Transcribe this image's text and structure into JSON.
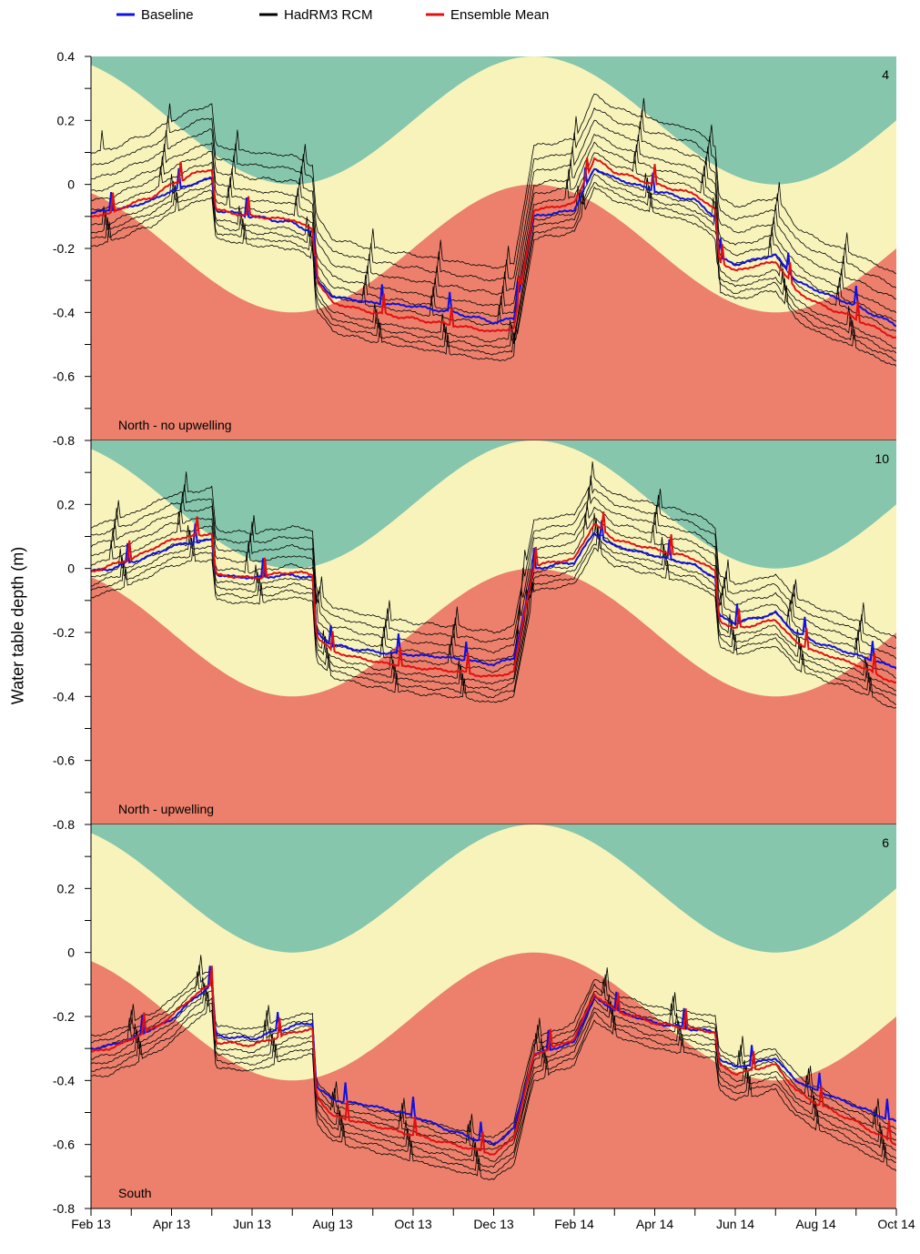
{
  "chart_data": {
    "type": "line",
    "ylabel": "Water table depth (m)",
    "legend": {
      "placement": "top",
      "entries": [
        {
          "name": "Baseline",
          "color": "#1010e0"
        },
        {
          "name": "HadRM3 RCM",
          "color": "#000000"
        },
        {
          "name": "Ensemble Mean",
          "color": "#e01010"
        }
      ]
    },
    "x_ticks": [
      "Feb 13",
      "Apr 13",
      "Jun 13",
      "Aug 13",
      "Oct 13",
      "Dec 13",
      "Feb 14",
      "Apr 14",
      "Jun 14",
      "Aug 14",
      "Oct 14"
    ],
    "y_ticks": [
      "0.4",
      "0.2",
      "0",
      "-0.2",
      "-0.4",
      "-0.6",
      "-0.8"
    ],
    "ylim": [
      -0.8,
      0.4
    ],
    "xlim_months": [
      0,
      20
    ],
    "band_colors": {
      "upper": "#86c6ad",
      "middle": "#f7f3bb",
      "lower": "#ec806c"
    },
    "bands": {
      "upper_curve": {
        "mean": 0.2,
        "amplitude": 0.2,
        "min_at_month": 5,
        "period_months": 12
      },
      "lower_curve": {
        "mean": -0.2,
        "amplitude": 0.2,
        "max_at_month": 11,
        "period_months": 12
      }
    },
    "panels": [
      {
        "id": "4",
        "label": "North - no upwelling",
        "baseline": [
          [
            0,
            -0.09
          ],
          [
            0.5,
            -0.08
          ],
          [
            1,
            -0.07
          ],
          [
            1.5,
            -0.05
          ],
          [
            2,
            -0.02
          ],
          [
            2.5,
            0.0
          ],
          [
            3,
            0.02
          ],
          [
            3.1,
            -0.08
          ],
          [
            4,
            -0.1
          ],
          [
            5,
            -0.12
          ],
          [
            5.5,
            -0.15
          ],
          [
            5.6,
            -0.3
          ],
          [
            6,
            -0.35
          ],
          [
            7,
            -0.37
          ],
          [
            8,
            -0.38
          ],
          [
            9,
            -0.4
          ],
          [
            10,
            -0.43
          ],
          [
            10.5,
            -0.42
          ],
          [
            11,
            -0.1
          ],
          [
            12,
            -0.08
          ],
          [
            12.5,
            0.05
          ],
          [
            13,
            0.02
          ],
          [
            14,
            -0.02
          ],
          [
            15,
            -0.05
          ],
          [
            15.5,
            -0.1
          ],
          [
            15.6,
            -0.23
          ],
          [
            16,
            -0.25
          ],
          [
            17,
            -0.22
          ],
          [
            17.5,
            -0.3
          ],
          [
            18,
            -0.33
          ],
          [
            19,
            -0.38
          ],
          [
            20,
            -0.44
          ]
        ],
        "ensemble_mean": [
          [
            0,
            -0.1
          ],
          [
            0.5,
            -0.09
          ],
          [
            1,
            -0.06
          ],
          [
            1.5,
            -0.04
          ],
          [
            2,
            0.0
          ],
          [
            2.5,
            0.03
          ],
          [
            3,
            0.05
          ],
          [
            3.1,
            -0.08
          ],
          [
            4,
            -0.1
          ],
          [
            5,
            -0.11
          ],
          [
            5.5,
            -0.14
          ],
          [
            5.6,
            -0.3
          ],
          [
            6,
            -0.37
          ],
          [
            7,
            -0.4
          ],
          [
            8,
            -0.42
          ],
          [
            9,
            -0.44
          ],
          [
            10,
            -0.46
          ],
          [
            10.5,
            -0.45
          ],
          [
            11,
            -0.08
          ],
          [
            12,
            -0.06
          ],
          [
            12.5,
            0.08
          ],
          [
            13,
            0.04
          ],
          [
            14,
            0.0
          ],
          [
            15,
            -0.03
          ],
          [
            15.5,
            -0.08
          ],
          [
            15.6,
            -0.24
          ],
          [
            16,
            -0.27
          ],
          [
            17,
            -0.24
          ],
          [
            17.5,
            -0.33
          ],
          [
            18,
            -0.37
          ],
          [
            19,
            -0.42
          ],
          [
            20,
            -0.48
          ]
        ],
        "spread_up": [
          0.02,
          0.05,
          0.08,
          0.12,
          0.16,
          0.2
        ],
        "spread_down": [
          0.03,
          0.05,
          0.07,
          0.09
        ]
      },
      {
        "id": "10",
        "label": "North - upwelling",
        "baseline": [
          [
            0,
            -0.01
          ],
          [
            0.5,
            0.0
          ],
          [
            1,
            0.02
          ],
          [
            1.5,
            0.04
          ],
          [
            2,
            0.07
          ],
          [
            2.5,
            0.08
          ],
          [
            3,
            0.09
          ],
          [
            3.1,
            -0.02
          ],
          [
            4,
            -0.03
          ],
          [
            5,
            -0.02
          ],
          [
            5.5,
            -0.03
          ],
          [
            5.6,
            -0.2
          ],
          [
            6,
            -0.24
          ],
          [
            7,
            -0.26
          ],
          [
            8,
            -0.27
          ],
          [
            9,
            -0.28
          ],
          [
            10,
            -0.3
          ],
          [
            10.5,
            -0.28
          ],
          [
            11,
            0.0
          ],
          [
            12,
            0.02
          ],
          [
            12.5,
            0.11
          ],
          [
            13,
            0.07
          ],
          [
            14,
            0.04
          ],
          [
            15,
            0.01
          ],
          [
            15.5,
            -0.03
          ],
          [
            15.6,
            -0.15
          ],
          [
            16,
            -0.17
          ],
          [
            17,
            -0.14
          ],
          [
            17.5,
            -0.2
          ],
          [
            18,
            -0.23
          ],
          [
            19,
            -0.27
          ],
          [
            20,
            -0.31
          ]
        ],
        "ensemble_mean": [
          [
            0,
            -0.01
          ],
          [
            0.5,
            0.01
          ],
          [
            1,
            0.03
          ],
          [
            1.5,
            0.06
          ],
          [
            2,
            0.09
          ],
          [
            2.5,
            0.1
          ],
          [
            3,
            0.11
          ],
          [
            3.1,
            -0.02
          ],
          [
            4,
            -0.03
          ],
          [
            5,
            -0.01
          ],
          [
            5.5,
            -0.02
          ],
          [
            5.6,
            -0.21
          ],
          [
            6,
            -0.26
          ],
          [
            7,
            -0.29
          ],
          [
            8,
            -0.31
          ],
          [
            9,
            -0.32
          ],
          [
            10,
            -0.34
          ],
          [
            10.5,
            -0.32
          ],
          [
            11,
            0.01
          ],
          [
            12,
            0.03
          ],
          [
            12.5,
            0.14
          ],
          [
            13,
            0.09
          ],
          [
            14,
            0.06
          ],
          [
            15,
            0.03
          ],
          [
            15.5,
            -0.01
          ],
          [
            15.6,
            -0.16
          ],
          [
            16,
            -0.19
          ],
          [
            17,
            -0.16
          ],
          [
            17.5,
            -0.23
          ],
          [
            18,
            -0.26
          ],
          [
            19,
            -0.3
          ],
          [
            20,
            -0.36
          ]
        ],
        "spread_up": [
          0.02,
          0.05,
          0.08,
          0.11,
          0.14
        ],
        "spread_down": [
          0.02,
          0.04,
          0.06,
          0.08
        ]
      },
      {
        "id": "6",
        "label": "South",
        "baseline": [
          [
            0,
            -0.3
          ],
          [
            0.5,
            -0.29
          ],
          [
            1,
            -0.27
          ],
          [
            1.5,
            -0.24
          ],
          [
            2,
            -0.21
          ],
          [
            2.5,
            -0.15
          ],
          [
            3,
            -0.1
          ],
          [
            3.1,
            -0.26
          ],
          [
            4,
            -0.27
          ],
          [
            5,
            -0.23
          ],
          [
            5.5,
            -0.22
          ],
          [
            5.6,
            -0.42
          ],
          [
            6,
            -0.46
          ],
          [
            7,
            -0.48
          ],
          [
            8,
            -0.51
          ],
          [
            9,
            -0.56
          ],
          [
            10,
            -0.6
          ],
          [
            10.5,
            -0.55
          ],
          [
            11,
            -0.32
          ],
          [
            12,
            -0.28
          ],
          [
            12.5,
            -0.14
          ],
          [
            13,
            -0.18
          ],
          [
            14,
            -0.22
          ],
          [
            15,
            -0.24
          ],
          [
            15.5,
            -0.25
          ],
          [
            15.6,
            -0.33
          ],
          [
            16,
            -0.36
          ],
          [
            17,
            -0.33
          ],
          [
            17.5,
            -0.4
          ],
          [
            18,
            -0.43
          ],
          [
            19,
            -0.48
          ],
          [
            20,
            -0.53
          ]
        ],
        "ensemble_mean": [
          [
            0,
            -0.31
          ],
          [
            0.5,
            -0.3
          ],
          [
            1,
            -0.27
          ],
          [
            1.5,
            -0.24
          ],
          [
            2,
            -0.2
          ],
          [
            2.5,
            -0.14
          ],
          [
            3,
            -0.1
          ],
          [
            3.1,
            -0.28
          ],
          [
            4,
            -0.29
          ],
          [
            5,
            -0.25
          ],
          [
            5.5,
            -0.24
          ],
          [
            5.6,
            -0.45
          ],
          [
            6,
            -0.51
          ],
          [
            7,
            -0.54
          ],
          [
            8,
            -0.57
          ],
          [
            9,
            -0.6
          ],
          [
            10,
            -0.63
          ],
          [
            10.5,
            -0.58
          ],
          [
            11,
            -0.32
          ],
          [
            12,
            -0.27
          ],
          [
            12.5,
            -0.13
          ],
          [
            13,
            -0.18
          ],
          [
            14,
            -0.22
          ],
          [
            15,
            -0.24
          ],
          [
            15.5,
            -0.25
          ],
          [
            15.6,
            -0.35
          ],
          [
            16,
            -0.38
          ],
          [
            17,
            -0.35
          ],
          [
            17.5,
            -0.43
          ],
          [
            18,
            -0.47
          ],
          [
            19,
            -0.53
          ],
          [
            20,
            -0.6
          ]
        ],
        "spread_up": [
          0.01,
          0.03,
          0.05
        ],
        "spread_down": [
          0.02,
          0.04,
          0.06,
          0.08
        ]
      }
    ]
  }
}
